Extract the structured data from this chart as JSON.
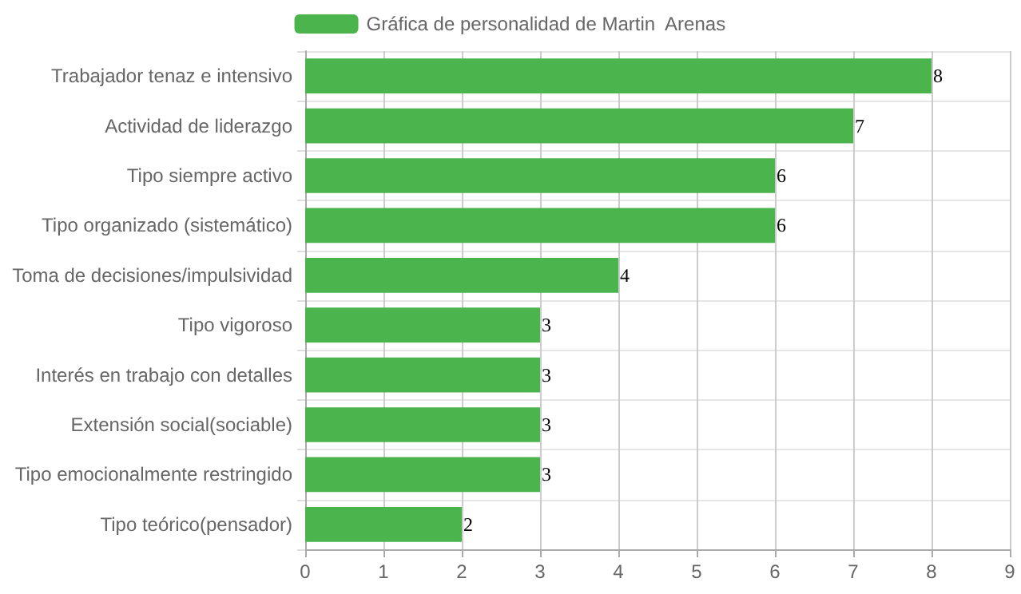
{
  "chart_data": {
    "type": "bar",
    "orientation": "horizontal",
    "categories": [
      "Trabajador tenaz e intensivo",
      "Actividad de liderazgo",
      "Tipo siempre activo",
      "Tipo organizado (sistemático)",
      "Toma de decisiones/impulsividad",
      "Tipo vigoroso",
      "Interés en trabajo con detalles",
      "Extensión social(sociable)",
      "Tipo emocionalmente restringido",
      "Tipo teórico(pensador)"
    ],
    "series": [
      {
        "name": "Gráfica de personalidad de Martin  Arenas",
        "color": "#4cb44c",
        "values": [
          8,
          7,
          6,
          6,
          4,
          3,
          3,
          3,
          3,
          2
        ]
      }
    ],
    "xlim": [
      0,
      9
    ],
    "xticks": [
      0,
      1,
      2,
      3,
      4,
      5,
      6,
      7,
      8,
      9
    ],
    "grid": true,
    "legend": "top",
    "data_labels": true
  }
}
